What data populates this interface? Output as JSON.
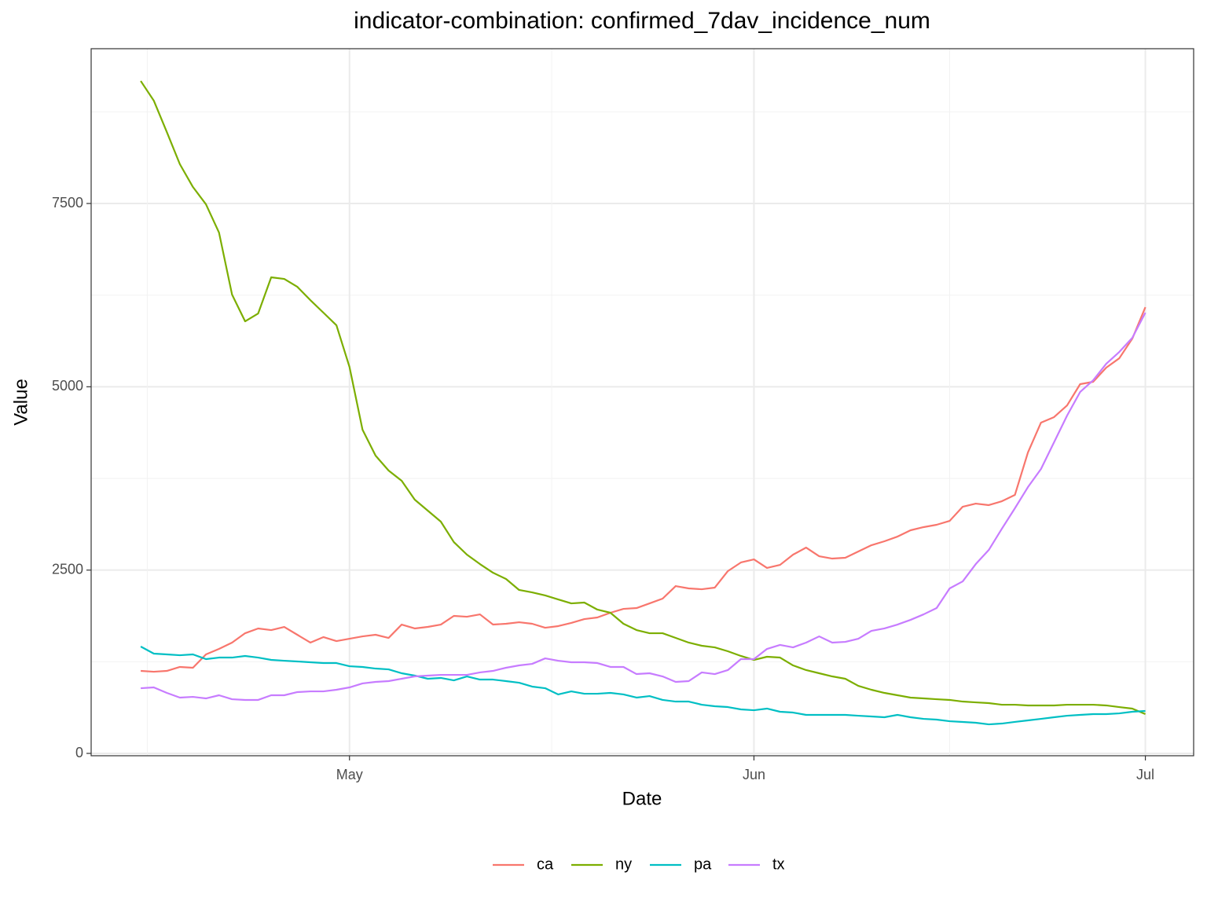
{
  "chart_data": {
    "type": "line",
    "title": "indicator-combination: confirmed_7dav_incidence_num",
    "x_label": "Date",
    "y_label": "Value",
    "categories": [
      null,
      null,
      null,
      null,
      null,
      null,
      null,
      null,
      null,
      null,
      null,
      null,
      null,
      null,
      null,
      null,
      "May",
      null,
      null,
      null,
      null,
      null,
      null,
      null,
      null,
      null,
      null,
      null,
      null,
      null,
      null,
      null,
      null,
      null,
      null,
      null,
      null,
      null,
      null,
      null,
      null,
      null,
      null,
      null,
      null,
      null,
      null,
      "Jun",
      null,
      null,
      null,
      null,
      null,
      null,
      null,
      null,
      null,
      null,
      null,
      null,
      null,
      null,
      null,
      null,
      null,
      null,
      null,
      null,
      null,
      null,
      null,
      null,
      null,
      null,
      null,
      null,
      null,
      "Jul"
    ],
    "series": [
      {
        "name": "ca",
        "color": "#F8766D",
        "values": [
          1125,
          1114,
          1125,
          1179,
          1168,
          1350,
          1425,
          1511,
          1639,
          1704,
          1682,
          1725,
          1618,
          1511,
          1586,
          1532,
          1564,
          1596,
          1618,
          1575,
          1757,
          1704,
          1725,
          1757,
          1875,
          1864,
          1896,
          1757,
          1768,
          1789,
          1768,
          1714,
          1736,
          1779,
          1832,
          1854,
          1918,
          1971,
          1982,
          2046,
          2111,
          2282,
          2250,
          2239,
          2261,
          2486,
          2604,
          2646,
          2529,
          2571,
          2711,
          2807,
          2689,
          2657,
          2668,
          2754,
          2839,
          2893,
          2957,
          3043,
          3086,
          3118,
          3171,
          3364,
          3407,
          3386,
          3439,
          3525,
          4104,
          4511,
          4586,
          4746,
          5036,
          5068,
          5261,
          5389,
          5657,
          6086
        ]
      },
      {
        "name": "ny",
        "color": "#7CAE00",
        "values": [
          9171,
          8903,
          8475,
          8036,
          7725,
          7489,
          7103,
          6257,
          5893,
          6000,
          6493,
          6471,
          6364,
          6182,
          6011,
          5839,
          5271,
          4414,
          4061,
          3857,
          3718,
          3461,
          3311,
          3161,
          2882,
          2711,
          2582,
          2464,
          2379,
          2229,
          2196,
          2154,
          2100,
          2046,
          2057,
          1961,
          1918,
          1768,
          1682,
          1639,
          1639,
          1575,
          1511,
          1468,
          1446,
          1393,
          1329,
          1275,
          1318,
          1307,
          1200,
          1136,
          1093,
          1050,
          1018,
          921,
          868,
          825,
          793,
          761,
          750,
          739,
          729,
          707,
          696,
          686,
          664,
          664,
          654,
          654,
          654,
          664,
          664,
          664,
          654,
          632,
          611,
          536
        ]
      },
      {
        "name": "pa",
        "color": "#00BFC4",
        "values": [
          1457,
          1361,
          1350,
          1339,
          1350,
          1286,
          1307,
          1307,
          1329,
          1307,
          1275,
          1264,
          1254,
          1243,
          1232,
          1232,
          1189,
          1179,
          1157,
          1146,
          1093,
          1061,
          1018,
          1029,
          996,
          1050,
          1007,
          1007,
          986,
          964,
          911,
          889,
          804,
          846,
          814,
          814,
          825,
          804,
          761,
          782,
          729,
          707,
          707,
          664,
          643,
          632,
          600,
          589,
          611,
          568,
          557,
          525,
          525,
          525,
          525,
          514,
          504,
          493,
          525,
          493,
          471,
          461,
          439,
          429,
          418,
          396,
          407,
          429,
          450,
          471,
          493,
          514,
          525,
          536,
          536,
          546,
          568,
          579
        ]
      },
      {
        "name": "tx",
        "color": "#C77CFF",
        "values": [
          889,
          900,
          825,
          761,
          771,
          750,
          793,
          739,
          729,
          729,
          793,
          793,
          836,
          846,
          846,
          868,
          900,
          954,
          975,
          986,
          1018,
          1050,
          1061,
          1071,
          1071,
          1071,
          1104,
          1125,
          1168,
          1200,
          1221,
          1296,
          1264,
          1243,
          1243,
          1232,
          1179,
          1179,
          1082,
          1093,
          1050,
          975,
          986,
          1104,
          1082,
          1136,
          1286,
          1286,
          1425,
          1479,
          1446,
          1511,
          1596,
          1511,
          1521,
          1564,
          1671,
          1704,
          1757,
          1821,
          1896,
          1982,
          2250,
          2346,
          2582,
          2775,
          3064,
          3343,
          3632,
          3879,
          4243,
          4607,
          4929,
          5089,
          5314,
          5475,
          5668,
          6011
        ]
      }
    ],
    "ylim": [
      -32,
      9611
    ],
    "yticks": [
      0,
      2500,
      5000,
      7500
    ],
    "grid": true,
    "legend_position": "bottom"
  }
}
